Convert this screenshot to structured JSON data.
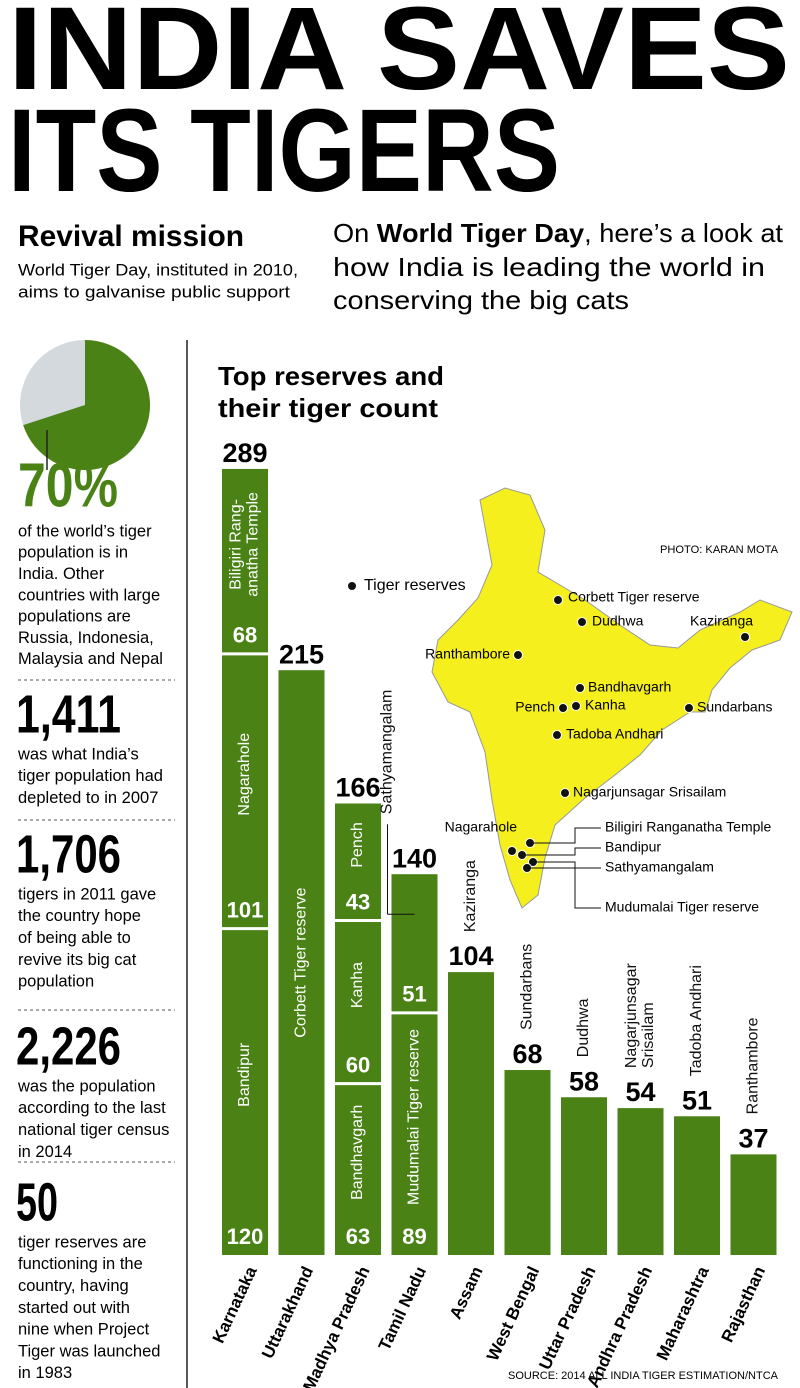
{
  "header": {
    "title": [
      "INDIA SAVES",
      "ITS TIGERS"
    ],
    "section": "Revival mission",
    "section_text": [
      "World Tiger Day, instituted in 2010,",
      "aims to galvanise public support"
    ],
    "intro": [
      [
        "On ",
        "World Tiger Day",
        ", here’s a look at"
      ],
      [
        "how India is leading the world in"
      ],
      [
        "conserving the big cats"
      ]
    ]
  },
  "pie": {
    "value": 70,
    "value_label": "70%",
    "lines": [
      "of the world’s tiger",
      "population is in",
      "India. Other",
      "countries with large",
      "populations are",
      "Russia, Indonesia,",
      "Malaysia and Nepal"
    ]
  },
  "facts": [
    {
      "value": "1,411",
      "lines": [
        "was what India’s",
        "tiger population had",
        "depleted to in 2007"
      ]
    },
    {
      "value": "1,706",
      "lines": [
        "tigers in 2011 gave",
        "the country hope",
        "of being able to",
        "revive its big cat",
        "population"
      ]
    },
    {
      "value": "2,226",
      "lines": [
        "was the population",
        "according to the last",
        "national tiger census",
        "in 2014"
      ]
    },
    {
      "value": "50",
      "lines": [
        "tiger reserves are",
        "functioning in the",
        "country, having",
        "started out with",
        "nine when Project",
        "Tiger was launched",
        "in 1983"
      ]
    }
  ],
  "chart_data": {
    "type": "stacked-bar",
    "title": [
      "Top reserves and",
      "their tiger count"
    ],
    "color": "#4a8216",
    "bars": [
      {
        "category": "Karnataka",
        "total": 289,
        "segments": [
          {
            "name": "Bandipur",
            "value": 120
          },
          {
            "name": "Nagarahole",
            "value": 101
          },
          {
            "name": [
              "Biligiri Rang-",
              "anatha Temple"
            ],
            "value": 68
          }
        ]
      },
      {
        "category": "Uttarakhand",
        "total": 215,
        "segments": [
          {
            "name": "Corbett Tiger reserve",
            "value": 215
          }
        ]
      },
      {
        "category": "Madhya Pradesh",
        "total": 166,
        "segments": [
          {
            "name": "Bandhavgarh",
            "value": 63
          },
          {
            "name": "Kanha",
            "value": 60
          },
          {
            "name": "Pench",
            "value": 43
          }
        ]
      },
      {
        "category": "Tamil Nadu",
        "total": 140,
        "segments": [
          {
            "name": "Mudumalai Tiger reserve",
            "value": 89
          },
          {
            "name": "Sathyamangalam",
            "value": 51
          }
        ]
      },
      {
        "category": "Assam",
        "total": 104,
        "segments": [
          {
            "name": "Kaziranga",
            "value": 104
          }
        ]
      },
      {
        "category": "West Bengal",
        "total": 68,
        "segments": [
          {
            "name": "Sundarbans",
            "value": 68
          }
        ]
      },
      {
        "category": "Uttar Pradesh",
        "total": 58,
        "segments": [
          {
            "name": "Dudhwa",
            "value": 58
          }
        ]
      },
      {
        "category": "Andhra Pradesh",
        "total": 54,
        "segments": [
          {
            "name": [
              "Nagarjunsagar",
              "Srisailam"
            ],
            "value": 54
          }
        ]
      },
      {
        "category": "Maharashtra",
        "total": 51,
        "segments": [
          {
            "name": "Tadoba Andhari",
            "value": 51
          }
        ]
      },
      {
        "category": "Rajasthan",
        "total": 37,
        "segments": [
          {
            "name": "Ranthambore",
            "value": 37
          }
        ]
      }
    ]
  },
  "map": {
    "legend": "Tiger reserves",
    "credit": "PHOTO: KARAN MOTA",
    "labels": [
      "Corbett Tiger reserve",
      "Dudhwa",
      "Kaziranga",
      "Ranthambore",
      "Bandhavgarh",
      "Pench",
      "Kanha",
      "Sundarbans",
      "Tadoba Andhari",
      "Nagarjunsagar Srisailam",
      "Nagarahole",
      "Biligiri Ranganatha Temple",
      "Bandipur",
      "Sathyamangalam",
      "Mudumalai Tiger reserve"
    ]
  },
  "source": "SOURCE: 2014 ALL INDIA TIGER ESTIMATION/NTCA"
}
